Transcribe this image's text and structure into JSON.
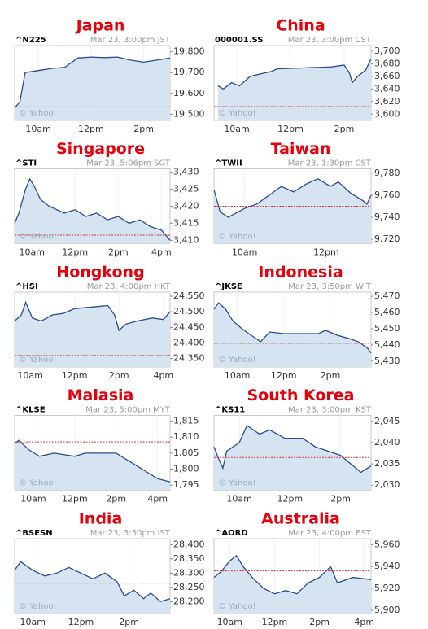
{
  "chart_data": [
    {
      "type": "line",
      "title": "Japan",
      "ticker": "^N225",
      "subtitle": "Mar 23, 3:00pm JST",
      "watermark": "© Yahoo!",
      "color": "#2b4c8c",
      "fill": "#d6e4f2",
      "reference_value": 19535,
      "reference_color": "#cc3333",
      "x": [
        9.1,
        9.3,
        9.5,
        10,
        10.5,
        11,
        11.5,
        12,
        12.5,
        13,
        13.5,
        14,
        14.5,
        15
      ],
      "values": [
        19530,
        19560,
        19700,
        19710,
        19720,
        19725,
        19770,
        19775,
        19772,
        19775,
        19760,
        19750,
        19760,
        19770
      ],
      "xlim": [
        9.1,
        15
      ],
      "ylim": [
        19470,
        19830
      ],
      "xticks": [
        {
          "value": 10,
          "label": "10am"
        },
        {
          "value": 12,
          "label": "12pm"
        },
        {
          "value": 14,
          "label": "2pm"
        }
      ],
      "yticks": [
        {
          "value": 19800,
          "label": "19,800"
        },
        {
          "value": 19700,
          "label": "19,700"
        },
        {
          "value": 19600,
          "label": "19,600"
        },
        {
          "value": 19500,
          "label": "19,500"
        }
      ]
    },
    {
      "type": "line",
      "title": "China",
      "ticker": "000001.SS",
      "subtitle": "Mar 23, 3:00pm CST",
      "watermark": "© Yahoo!",
      "color": "#2b4c8c",
      "fill": "#d6e4f2",
      "reference_value": 3612,
      "reference_color": "#cc3333",
      "x": [
        9.3,
        9.5,
        9.8,
        10.1,
        10.5,
        11,
        11.3,
        11.5,
        13.5,
        14,
        14.2,
        14.3,
        14.5,
        14.8,
        15
      ],
      "values": [
        3645,
        3640,
        3650,
        3645,
        3660,
        3665,
        3668,
        3672,
        3675,
        3678,
        3665,
        3650,
        3660,
        3670,
        3688
      ],
      "xlim": [
        9.15,
        15
      ],
      "ylim": [
        3590,
        3709
      ],
      "xticks": [
        {
          "value": 10,
          "label": "10am"
        },
        {
          "value": 12,
          "label": "12pm"
        },
        {
          "value": 14,
          "label": "2pm"
        }
      ],
      "yticks": [
        {
          "value": 3700,
          "label": "3,700"
        },
        {
          "value": 3680,
          "label": "3,680"
        },
        {
          "value": 3660,
          "label": "3,660"
        },
        {
          "value": 3640,
          "label": "3,640"
        },
        {
          "value": 3620,
          "label": "3,620"
        },
        {
          "value": 3600,
          "label": "3,600"
        }
      ]
    },
    {
      "type": "line",
      "title": "Singapore",
      "ticker": "^STI",
      "subtitle": "Mar 23, 5:06pm SGT",
      "watermark": "© Yahoo!",
      "color": "#2b4c8c",
      "fill": "#d6e4f2",
      "reference_value": 3411.5,
      "reference_color": "#cc3333",
      "x": [
        9.2,
        9.4,
        9.7,
        9.9,
        10.1,
        10.4,
        10.8,
        11.5,
        12,
        12.5,
        13,
        13.5,
        14,
        14.5,
        15,
        15.5,
        16,
        16.4
      ],
      "values": [
        3415,
        3418,
        3425,
        3428,
        3426,
        3422,
        3420,
        3418,
        3419,
        3417,
        3418,
        3416,
        3417,
        3415,
        3416,
        3414,
        3413,
        3410
      ],
      "xlim": [
        9.2,
        16.4
      ],
      "ylim": [
        3409,
        3431
      ],
      "xticks": [
        {
          "value": 10,
          "label": "10am"
        },
        {
          "value": 12,
          "label": "12pm"
        },
        {
          "value": 14,
          "label": "2pm"
        },
        {
          "value": 16,
          "label": "4pm"
        }
      ],
      "yticks": [
        {
          "value": 3430,
          "label": "3,430"
        },
        {
          "value": 3425,
          "label": "3,425"
        },
        {
          "value": 3420,
          "label": "3,420"
        },
        {
          "value": 3415,
          "label": "3,415"
        },
        {
          "value": 3410,
          "label": "3,410"
        }
      ]
    },
    {
      "type": "line",
      "title": "Taiwan",
      "ticker": "^TWII",
      "subtitle": "Mar 23, 1:30pm CST",
      "watermark": "© Yahoo!",
      "color": "#2b4c8c",
      "fill": "#d6e4f2",
      "reference_value": 9750,
      "reference_color": "#cc3333",
      "x": [
        9.25,
        9.4,
        9.6,
        10,
        10.3,
        10.6,
        10.9,
        11.2,
        11.5,
        11.8,
        12.1,
        12.3,
        12.6,
        12.9,
        13,
        13.1
      ],
      "values": [
        9765,
        9745,
        9740,
        9748,
        9752,
        9760,
        9768,
        9763,
        9770,
        9775,
        9768,
        9772,
        9762,
        9755,
        9752,
        9760
      ],
      "xlim": [
        9.25,
        13.1
      ],
      "ylim": [
        9716,
        9784
      ],
      "xticks": [
        {
          "value": 10,
          "label": "10am"
        },
        {
          "value": 12,
          "label": "12pm"
        }
      ],
      "yticks": [
        {
          "value": 9780,
          "label": "9,780"
        },
        {
          "value": 9760,
          "label": "9,760"
        },
        {
          "value": 9740,
          "label": "9,740"
        },
        {
          "value": 9720,
          "label": "9,720"
        }
      ]
    },
    {
      "type": "line",
      "title": "Hongkong",
      "ticker": "^HSI",
      "subtitle": "Mar 23, 4:00pm HKT",
      "watermark": "© Yahoo!",
      "color": "#2b4c8c",
      "fill": "#d6e4f2",
      "reference_value": 24360,
      "reference_color": "#cc3333",
      "x": [
        9.3,
        9.6,
        9.8,
        10.1,
        10.5,
        11,
        11.5,
        12,
        13.5,
        13.8,
        14,
        14.3,
        14.8,
        15.5,
        16,
        16.3
      ],
      "values": [
        24470,
        24490,
        24530,
        24480,
        24470,
        24490,
        24495,
        24510,
        24520,
        24490,
        24440,
        24460,
        24470,
        24480,
        24475,
        24500
      ],
      "xlim": [
        9.3,
        16.3
      ],
      "ylim": [
        24323,
        24563
      ],
      "xticks": [
        {
          "value": 10,
          "label": "10am"
        },
        {
          "value": 12,
          "label": "12pm"
        },
        {
          "value": 14,
          "label": "2pm"
        },
        {
          "value": 16,
          "label": "4pm"
        }
      ],
      "yticks": [
        {
          "value": 24550,
          "label": "24,550"
        },
        {
          "value": 24500,
          "label": "24,500"
        },
        {
          "value": 24450,
          "label": "24,450"
        },
        {
          "value": 24400,
          "label": "24,400"
        },
        {
          "value": 24350,
          "label": "24,350"
        }
      ]
    },
    {
      "type": "line",
      "title": "Indonesia",
      "ticker": "^JKSE",
      "subtitle": "Mar 23, 3:50pm WIT",
      "watermark": "© Yahoo!",
      "color": "#2b4c8c",
      "fill": "#d6e4f2",
      "reference_value": 5441,
      "reference_color": "#cc3333",
      "x": [
        9,
        9.2,
        9.5,
        9.8,
        10.2,
        10.6,
        11,
        11.4,
        12,
        13.5,
        13.8,
        14.3,
        14.8,
        15.2,
        15.6,
        15.75
      ],
      "values": [
        5462,
        5466,
        5462,
        5455,
        5450,
        5446,
        5442,
        5448,
        5447,
        5447,
        5449,
        5446,
        5444,
        5442,
        5438,
        5435
      ],
      "xlim": [
        9,
        15.75
      ],
      "ylim": [
        5426.4,
        5472.6
      ],
      "xticks": [
        {
          "value": 10,
          "label": "10am"
        },
        {
          "value": 12,
          "label": "12pm"
        },
        {
          "value": 14,
          "label": "2pm"
        }
      ],
      "yticks": [
        {
          "value": 5470,
          "label": "5,470"
        },
        {
          "value": 5460,
          "label": "5,460"
        },
        {
          "value": 5450,
          "label": "5,450"
        },
        {
          "value": 5440,
          "label": "5,440"
        },
        {
          "value": 5430,
          "label": "5,430"
        }
      ]
    },
    {
      "type": "line",
      "title": "Malasia",
      "ticker": "^KLSE",
      "subtitle": "Mar 23, 5:00pm MYT",
      "watermark": "© Yahoo!",
      "color": "#2b4c8c",
      "fill": "#d6e4f2",
      "reference_value": 1808.5,
      "reference_color": "#cc3333",
      "x": [
        9.1,
        9.3,
        9.8,
        10.3,
        11,
        12,
        12.5,
        14,
        14.5,
        15,
        15.5,
        16,
        16.6
      ],
      "values": [
        1808,
        1809,
        1806,
        1804,
        1805,
        1804,
        1805,
        1805,
        1803,
        1801,
        1799,
        1797,
        1796
      ],
      "xlim": [
        9.1,
        16.6
      ],
      "ylim": [
        1793.4,
        1816.8
      ],
      "xticks": [
        {
          "value": 10,
          "label": "10am"
        },
        {
          "value": 12,
          "label": "12pm"
        },
        {
          "value": 14,
          "label": "2pm"
        },
        {
          "value": 16,
          "label": "4pm"
        }
      ],
      "yticks": [
        {
          "value": 1815,
          "label": "1,815"
        },
        {
          "value": 1810,
          "label": "1,810"
        },
        {
          "value": 1805,
          "label": "1,805"
        },
        {
          "value": 1800,
          "label": "1,800"
        },
        {
          "value": 1795,
          "label": "1,795"
        }
      ]
    },
    {
      "type": "line",
      "title": "South Korea",
      "ticker": "^KS11",
      "subtitle": "Mar 23, 3:00pm KST",
      "watermark": "© Yahoo!",
      "color": "#2b4c8c",
      "fill": "#d6e4f2",
      "reference_value": 2036.5,
      "reference_color": "#cc3333",
      "x": [
        9,
        9.2,
        9.35,
        9.5,
        10,
        10.3,
        10.8,
        11.2,
        11.8,
        12.5,
        13,
        13.5,
        14,
        14.4,
        14.8,
        15.2
      ],
      "values": [
        2039,
        2036,
        2034,
        2038,
        2040,
        2044,
        2042,
        2043,
        2041,
        2041,
        2039,
        2038,
        2037,
        2035,
        2033,
        2034.5
      ],
      "xlim": [
        9,
        15.2
      ],
      "ylim": [
        2028.8,
        2046.4
      ],
      "xticks": [
        {
          "value": 10,
          "label": "10am"
        },
        {
          "value": 12,
          "label": "12pm"
        },
        {
          "value": 14,
          "label": "2pm"
        }
      ],
      "yticks": [
        {
          "value": 2045,
          "label": "2,045"
        },
        {
          "value": 2040,
          "label": "2,040"
        },
        {
          "value": 2035,
          "label": "2,035"
        },
        {
          "value": 2030,
          "label": "2,030"
        }
      ]
    },
    {
      "type": "line",
      "title": "India",
      "ticker": "^BSESN",
      "subtitle": "Mar 23, 3:30pm IST",
      "watermark": "© Yahoo!",
      "color": "#2b4c8c",
      "fill": "#d6e4f2",
      "reference_value": 28265,
      "reference_color": "#cc3333",
      "x": [
        9.25,
        9.5,
        10,
        10.5,
        11,
        11.5,
        12,
        12.5,
        13,
        13.5,
        13.8,
        14.2,
        14.6,
        14.9,
        15.3,
        15.7
      ],
      "values": [
        28310,
        28340,
        28310,
        28290,
        28300,
        28320,
        28300,
        28280,
        28300,
        28270,
        28220,
        28240,
        28210,
        28230,
        28200,
        28210
      ],
      "xlim": [
        9.25,
        15.7
      ],
      "ylim": [
        28158,
        28421
      ],
      "xticks": [
        {
          "value": 10,
          "label": "10am"
        },
        {
          "value": 12,
          "label": "12pm"
        },
        {
          "value": 14,
          "label": "2pm"
        }
      ],
      "yticks": [
        {
          "value": 28400,
          "label": "28,400"
        },
        {
          "value": 28350,
          "label": "28,350"
        },
        {
          "value": 28300,
          "label": "28,300"
        },
        {
          "value": 28250,
          "label": "28,250"
        },
        {
          "value": 28200,
          "label": "28,200"
        }
      ]
    },
    {
      "type": "line",
      "title": "Australia",
      "ticker": "^AORD",
      "subtitle": "Mar 23, 4:00pm EST",
      "watermark": "© Yahoo!",
      "color": "#2b4c8c",
      "fill": "#d6e4f2",
      "reference_value": 5936,
      "reference_color": "#cc3333",
      "x": [
        9.3,
        9.6,
        10,
        10.3,
        10.6,
        11,
        11.5,
        12,
        12.5,
        13,
        13.5,
        14,
        14.5,
        14.8,
        15.5,
        16.3
      ],
      "values": [
        5930,
        5935,
        5945,
        5950,
        5940,
        5930,
        5920,
        5915,
        5918,
        5915,
        5925,
        5930,
        5940,
        5925,
        5930,
        5928
      ],
      "xlim": [
        9.3,
        16.3
      ],
      "ylim": [
        5896.9,
        5965.5
      ],
      "xticks": [
        {
          "value": 10,
          "label": "10am"
        },
        {
          "value": 12,
          "label": "12pm"
        },
        {
          "value": 14,
          "label": "2pm"
        },
        {
          "value": 16,
          "label": "4pm"
        }
      ],
      "yticks": [
        {
          "value": 5960,
          "label": "5,960"
        },
        {
          "value": 5940,
          "label": "5,940"
        },
        {
          "value": 5920,
          "label": "5,920"
        },
        {
          "value": 5900,
          "label": "5,900"
        }
      ]
    }
  ]
}
